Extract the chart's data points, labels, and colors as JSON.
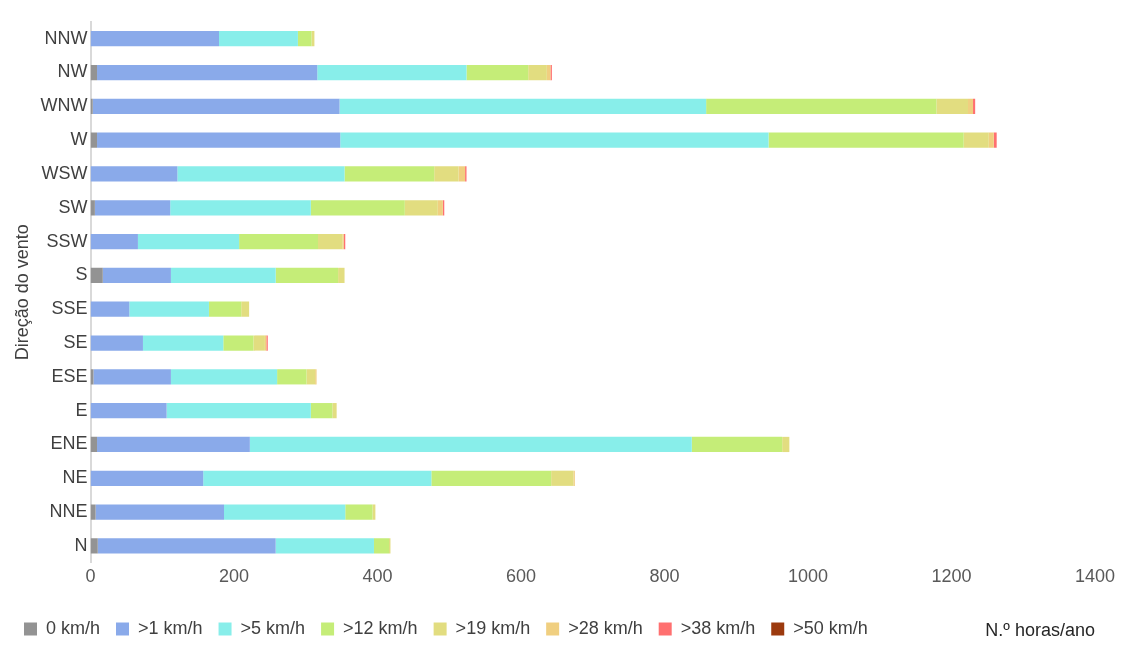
{
  "chart_data": {
    "type": "bar",
    "orientation": "horizontal",
    "stacked": true,
    "xlabel": "N.º horas/ano",
    "ylabel": "Direção do vento",
    "categories": [
      "NNW",
      "NW",
      "WNW",
      "W",
      "WSW",
      "SW",
      "SSW",
      "S",
      "SSE",
      "SE",
      "ESE",
      "E",
      "ENE",
      "NE",
      "NNE",
      "N"
    ],
    "series": [
      {
        "name": "0 km/h",
        "color": "#939393",
        "values": [
          0,
          9,
          3,
          9,
          0,
          6,
          0,
          17,
          0,
          0,
          4,
          0,
          9,
          0,
          7,
          10
        ]
      },
      {
        "name": ">1 km/h",
        "color": "#8aaaea",
        "values": [
          179,
          307,
          344,
          339,
          121,
          105,
          66,
          95,
          54,
          73,
          108,
          106,
          213,
          157,
          179,
          248
        ]
      },
      {
        "name": ">5 km/h",
        "color": "#88eeea",
        "values": [
          110,
          208,
          511,
          597,
          233,
          196,
          141,
          146,
          111,
          112,
          148,
          201,
          616,
          318,
          169,
          137
        ]
      },
      {
        "name": ">12 km/h",
        "color": "#c5ed78",
        "values": [
          19,
          86,
          321,
          272,
          125,
          131,
          110,
          87,
          45,
          42,
          41,
          30,
          126,
          167,
          38,
          21
        ]
      },
      {
        "name": ">19 km/h",
        "color": "#e2dd80",
        "values": [
          4,
          26,
          44,
          35,
          34,
          46,
          34,
          9,
          11,
          16,
          12,
          6,
          10,
          31,
          4,
          2
        ]
      },
      {
        "name": ">28 km/h",
        "color": "#f0cf80",
        "values": [
          0,
          5,
          7,
          7,
          9,
          7,
          2,
          0,
          0,
          2,
          2,
          0,
          0,
          2,
          0,
          0
        ]
      },
      {
        "name": ">38 km/h",
        "color": "#ff7070",
        "values": [
          0,
          2,
          3,
          4,
          2,
          2,
          2,
          0,
          0,
          2,
          0,
          0,
          0,
          0,
          0,
          0
        ]
      },
      {
        "name": ">50 km/h",
        "color": "#9c3a0e",
        "values": [
          0,
          0,
          0,
          0,
          0,
          0,
          0,
          0,
          0,
          0,
          0,
          0,
          0,
          0,
          0,
          0
        ]
      }
    ],
    "xlim": [
      0,
      1400
    ],
    "xticks": [
      0,
      200,
      400,
      600,
      800,
      1000,
      1200,
      1400
    ],
    "legend": "bottom",
    "grid": false
  }
}
